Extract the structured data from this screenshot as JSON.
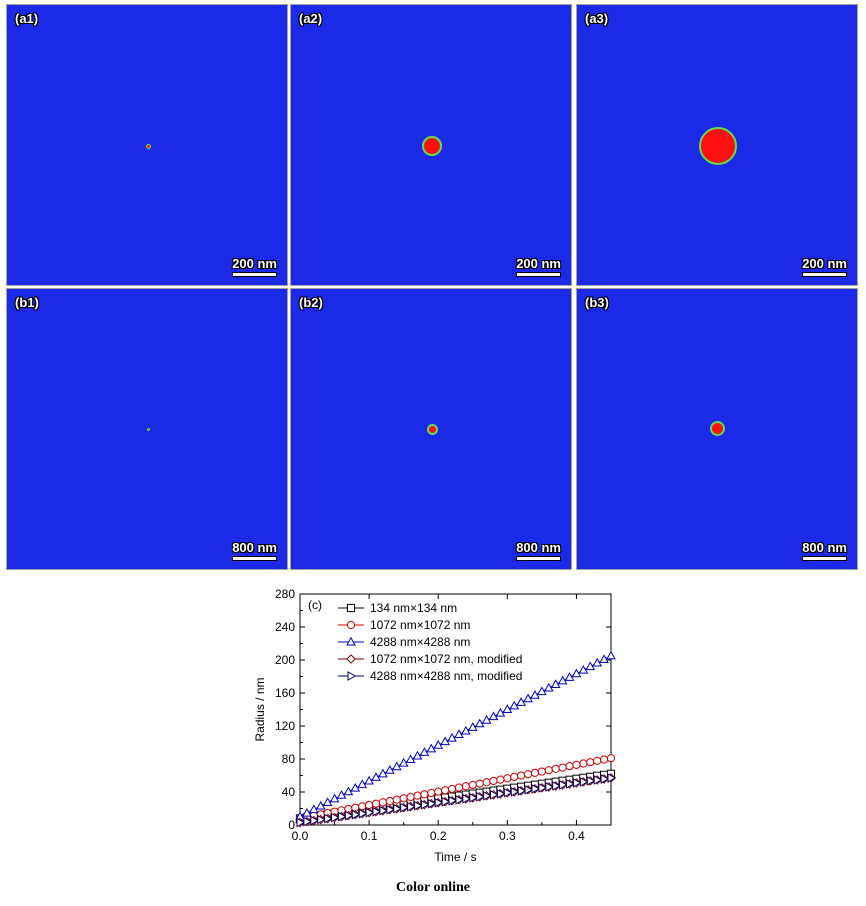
{
  "panels": [
    {
      "id": "a1",
      "label": "(a1)",
      "scale_text": "200 nm"
    },
    {
      "id": "a2",
      "label": "(a2)",
      "scale_text": "200 nm"
    },
    {
      "id": "a3",
      "label": "(a3)",
      "scale_text": "200 nm"
    },
    {
      "id": "b1",
      "label": "(b1)",
      "scale_text": "800 nm"
    },
    {
      "id": "b2",
      "label": "(b2)",
      "scale_text": "800 nm"
    },
    {
      "id": "b3",
      "label": "(b3)",
      "scale_text": "800 nm"
    }
  ],
  "colors": {
    "background": "#1a2ae6",
    "grain": "#ff1010",
    "interface": "#5ee04a"
  },
  "chart_data": {
    "type": "line",
    "panel_label": "(c)",
    "xlabel": "Time / s",
    "ylabel": "Radius / nm",
    "xlim": [
      0.0,
      0.45
    ],
    "ylim": [
      0,
      280
    ],
    "xticks": [
      "0.0",
      "0.1",
      "0.2",
      "0.3",
      "0.4"
    ],
    "yticks": [
      "0",
      "40",
      "80",
      "120",
      "160",
      "200",
      "240",
      "280"
    ],
    "grid": false,
    "legend_position": "top-left",
    "series": [
      {
        "name": "134 nm×134 nm",
        "color": "#000000",
        "marker": "square",
        "x": [
          0.0,
          0.45
        ],
        "y": [
          8,
          62
        ]
      },
      {
        "name": "1072 nm×1072 nm",
        "color": "#d00000",
        "marker": "circle",
        "x": [
          0.0,
          0.45
        ],
        "y": [
          8,
          81
        ]
      },
      {
        "name": "4288 nm×4288 nm",
        "color": "#0000c8",
        "marker": "triangle-up",
        "x": [
          0.0,
          0.45
        ],
        "y": [
          10,
          205
        ]
      },
      {
        "name": "1072 nm×1072 nm, modified",
        "color": "#800000",
        "marker": "diamond",
        "x": [
          0.0,
          0.45
        ],
        "y": [
          3,
          57
        ]
      },
      {
        "name": "4288 nm×4288 nm, modified",
        "color": "#000060",
        "marker": "triangle-right",
        "x": [
          0.0,
          0.45
        ],
        "y": [
          3,
          57
        ]
      }
    ]
  },
  "caption": "Color online"
}
